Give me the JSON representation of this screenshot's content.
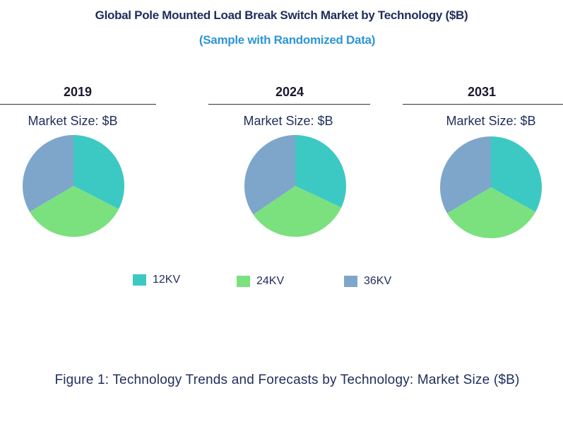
{
  "title": "Global Pole Mounted Load Break Switch Market by Technology ($B)",
  "subtitle": "(Sample with Randomized Data)",
  "caption": "Figure 1: Technology Trends and Forecasts by Technology: Market Size ($B)",
  "colors": {
    "12KV": "#3cc9c3",
    "24KV": "#7be07e",
    "36KV": "#7ea6cb"
  },
  "legend": [
    {
      "label": "12KV",
      "icon": "teal-square"
    },
    {
      "label": "24KV",
      "icon": "green-square"
    },
    {
      "label": "36KV",
      "icon": "blue-square"
    }
  ],
  "chart_data": [
    {
      "type": "pie",
      "title": "2019",
      "subtitle": "Market Size: $B",
      "categories": [
        "12KV",
        "24KV",
        "36KV"
      ],
      "values": [
        32.5,
        34.0,
        33.5
      ]
    },
    {
      "type": "pie",
      "title": "2024",
      "subtitle": "Market Size: $B",
      "categories": [
        "12KV",
        "24KV",
        "36KV"
      ],
      "values": [
        32.0,
        33.5,
        34.5
      ]
    },
    {
      "type": "pie",
      "title": "2031",
      "subtitle": "Market Size: $B",
      "categories": [
        "12KV",
        "24KV",
        "36KV"
      ],
      "values": [
        33.0,
        33.5,
        33.5
      ]
    }
  ]
}
